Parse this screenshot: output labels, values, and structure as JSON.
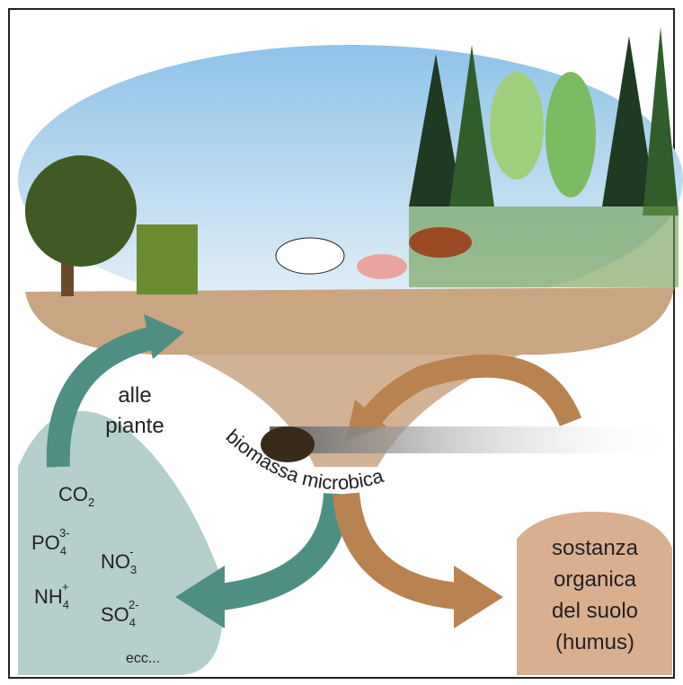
{
  "labels": {
    "to_plants": [
      "alle",
      "piante"
    ],
    "microbial_biomass": "biomassa microbica",
    "nutrients": [
      {
        "symbol": "CO",
        "sub": "2"
      },
      {
        "symbol": "PO",
        "sub": "4",
        "sup": "3-"
      },
      {
        "symbol": "NO",
        "sub": "3",
        "sup": "-"
      },
      {
        "symbol": "NH",
        "sub": "4",
        "sup": "+"
      },
      {
        "symbol": "SO",
        "sub": "4",
        "sup": "2-"
      }
    ],
    "etc": "ecc...",
    "humus": [
      "sostanza",
      "organica",
      "del suolo",
      "(humus)"
    ]
  }
}
